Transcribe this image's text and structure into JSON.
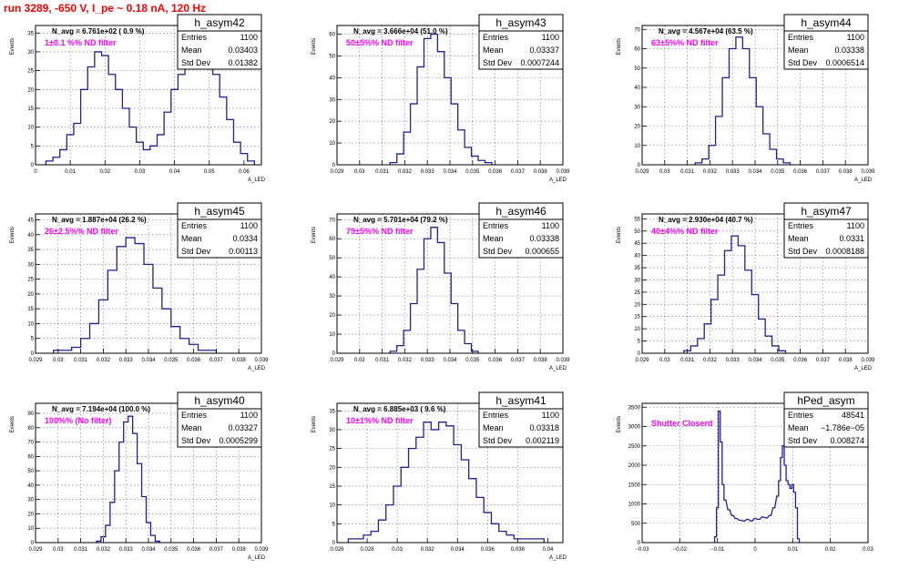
{
  "page_title": "run 3289,  -650 V, I_pe ~ 0.18 nA, 120 Hz",
  "colors": {
    "title": "#ff0000",
    "histogram": "#20209a",
    "annotation": "#ff00ff"
  },
  "chart_data": [
    {
      "type": "histogram",
      "id": "h_asym42",
      "title": "h_asym42",
      "ylabel": "Events",
      "xlabel": "A_LED",
      "xlim": [
        0,
        0.065
      ],
      "ylim": [
        0,
        37
      ],
      "xticks": [
        0,
        0.01,
        0.02,
        0.03,
        0.04,
        0.05,
        0.06
      ],
      "xtick_labels": [
        "0",
        "0.01",
        "0.02",
        "0.03",
        "0.04",
        "0.05",
        "0.06"
      ],
      "yticks": [
        0,
        5,
        10,
        15,
        20,
        25,
        30,
        35
      ],
      "ytick_labels": [
        "0",
        "5",
        "10",
        "15",
        "20",
        "25",
        "30",
        "35"
      ],
      "grid": true,
      "n_avg": "N_avg = 6.761e+02 ( 0.9 %)",
      "annotation": "1±0.1 %% ND filter",
      "stats": {
        "entries": "1100",
        "mean": "0.03403",
        "std_dev": "0.01382"
      },
      "bins": {
        "x": [
          0.004,
          0.006,
          0.008,
          0.01,
          0.012,
          0.014,
          0.016,
          0.018,
          0.02,
          0.022,
          0.024,
          0.026,
          0.028,
          0.03,
          0.032,
          0.034,
          0.036,
          0.038,
          0.04,
          0.042,
          0.044,
          0.046,
          0.048,
          0.05,
          0.052,
          0.054,
          0.056,
          0.058,
          0.06,
          0.062
        ],
        "y": [
          1,
          2,
          4,
          8,
          11,
          20,
          26,
          30,
          29,
          24,
          20,
          15,
          10,
          6,
          4,
          5,
          8,
          14,
          20,
          24,
          27,
          30,
          29,
          27,
          24,
          18,
          12,
          6,
          3,
          1
        ]
      }
    },
    {
      "type": "histogram",
      "id": "h_asym43",
      "title": "h_asym43",
      "ylabel": "Events",
      "xlabel": "A_LED",
      "xlim": [
        0.029,
        0.039
      ],
      "ylim": [
        0,
        64
      ],
      "xticks": [
        0.029,
        0.03,
        0.031,
        0.032,
        0.033,
        0.034,
        0.035,
        0.036,
        0.037,
        0.038,
        0.039
      ],
      "xtick_labels": [
        "0.029",
        "0.03",
        "0.031",
        "0.032",
        "0.033",
        "0.034",
        "0.035",
        "0.036",
        "0.037",
        "0.038",
        "0.039"
      ],
      "yticks": [
        0,
        10,
        20,
        30,
        40,
        50,
        60
      ],
      "ytick_labels": [
        "0",
        "10",
        "20",
        "30",
        "40",
        "50",
        "60"
      ],
      "grid": true,
      "n_avg": "N_avg = 3.666e+04 (51.0 %)",
      "annotation": "50±5%% ND filter",
      "stats": {
        "entries": "1100",
        "mean": "0.03337",
        "std_dev": "0.0007244"
      },
      "bins": {
        "x": [
          0.0315,
          0.0318,
          0.0321,
          0.0324,
          0.0327,
          0.033,
          0.0333,
          0.0336,
          0.0339,
          0.0342,
          0.0345,
          0.0348,
          0.0351,
          0.0354,
          0.0357
        ],
        "y": [
          1,
          5,
          15,
          28,
          45,
          58,
          60,
          52,
          40,
          28,
          16,
          8,
          4,
          2,
          1
        ]
      }
    },
    {
      "type": "histogram",
      "id": "h_asym44",
      "title": "h_asym44",
      "ylabel": "Events",
      "xlabel": "A_LED",
      "xlim": [
        0.029,
        0.039
      ],
      "ylim": [
        0,
        72
      ],
      "xticks": [
        0.029,
        0.03,
        0.031,
        0.032,
        0.033,
        0.034,
        0.035,
        0.036,
        0.037,
        0.038,
        0.039
      ],
      "xtick_labels": [
        "0.029",
        "0.03",
        "0.031",
        "0.032",
        "0.033",
        "0.034",
        "0.035",
        "0.036",
        "0.037",
        "0.038",
        "0.039"
      ],
      "yticks": [
        0,
        10,
        20,
        30,
        40,
        50,
        60,
        70
      ],
      "ytick_labels": [
        "0",
        "10",
        "20",
        "30",
        "40",
        "50",
        "60",
        "70"
      ],
      "grid": true,
      "n_avg": "N_avg = 4.567e+04 (63.5 %)",
      "annotation": "63±5%% ND filter",
      "stats": {
        "entries": "1100",
        "mean": "0.03338",
        "std_dev": "0.0006514"
      },
      "bins": {
        "x": [
          0.0315,
          0.0318,
          0.0321,
          0.0324,
          0.0327,
          0.033,
          0.0333,
          0.0336,
          0.0339,
          0.0342,
          0.0345,
          0.0348,
          0.0351,
          0.0354
        ],
        "y": [
          1,
          3,
          10,
          25,
          45,
          60,
          66,
          60,
          45,
          30,
          16,
          8,
          3,
          1
        ]
      }
    },
    {
      "type": "histogram",
      "id": "h_asym45",
      "title": "h_asym45",
      "ylabel": "Events",
      "xlabel": "A_LED",
      "xlim": [
        0.029,
        0.039
      ],
      "ylim": [
        0,
        47
      ],
      "xticks": [
        0.029,
        0.03,
        0.031,
        0.032,
        0.033,
        0.034,
        0.035,
        0.036,
        0.037,
        0.038,
        0.039
      ],
      "xtick_labels": [
        "0.029",
        "0.03",
        "0.031",
        "0.032",
        "0.033",
        "0.034",
        "0.035",
        "0.036",
        "0.037",
        "0.038",
        "0.039"
      ],
      "yticks": [
        0,
        5,
        10,
        15,
        20,
        25,
        30,
        35,
        40,
        45
      ],
      "ytick_labels": [
        "0",
        "5",
        "10",
        "15",
        "20",
        "25",
        "30",
        "35",
        "40",
        "45"
      ],
      "grid": true,
      "n_avg": "N_avg = 1.887e+04 (26.2 %)",
      "annotation": "26±2.5%% ND filter",
      "stats": {
        "entries": "1100",
        "mean": "0.0334",
        "std_dev": "0.00113"
      },
      "bins": {
        "x": [
          0.03,
          0.0304,
          0.0308,
          0.0312,
          0.0316,
          0.032,
          0.0324,
          0.0328,
          0.0332,
          0.0336,
          0.034,
          0.0344,
          0.0348,
          0.0352,
          0.0356,
          0.036,
          0.0364,
          0.0368
        ],
        "y": [
          1,
          1,
          2,
          5,
          10,
          18,
          28,
          36,
          39,
          37,
          30,
          22,
          15,
          9,
          5,
          3,
          1,
          1
        ]
      }
    },
    {
      "type": "histogram",
      "id": "h_asym46",
      "title": "h_asym46",
      "ylabel": "Events",
      "xlabel": "A_LED",
      "xlim": [
        0.029,
        0.039
      ],
      "ylim": [
        0,
        73
      ],
      "xticks": [
        0.029,
        0.03,
        0.031,
        0.032,
        0.033,
        0.034,
        0.035,
        0.036,
        0.037,
        0.038,
        0.039
      ],
      "xtick_labels": [
        "0.029",
        "0.03",
        "0.031",
        "0.032",
        "0.033",
        "0.034",
        "0.035",
        "0.036",
        "0.037",
        "0.038",
        "0.039"
      ],
      "yticks": [
        0,
        10,
        20,
        30,
        40,
        50,
        60,
        70
      ],
      "ytick_labels": [
        "0",
        "10",
        "20",
        "30",
        "40",
        "50",
        "60",
        "70"
      ],
      "grid": true,
      "n_avg": "N_avg = 5.701e+04 (79.2 %)",
      "annotation": "79±5%% ND filter",
      "stats": {
        "entries": "1100",
        "mean": "0.03338",
        "std_dev": "0.000655"
      },
      "bins": {
        "x": [
          0.0315,
          0.0318,
          0.0321,
          0.0324,
          0.0327,
          0.033,
          0.0333,
          0.0336,
          0.0339,
          0.0342,
          0.0345,
          0.0348,
          0.0351
        ],
        "y": [
          1,
          4,
          12,
          26,
          44,
          60,
          66,
          58,
          42,
          26,
          12,
          5,
          1
        ]
      }
    },
    {
      "type": "histogram",
      "id": "h_asym47",
      "title": "h_asym47",
      "ylabel": "Events",
      "xlabel": "A_LED",
      "xlim": [
        0.029,
        0.039
      ],
      "ylim": [
        0,
        57
      ],
      "xticks": [
        0.029,
        0.03,
        0.031,
        0.032,
        0.033,
        0.034,
        0.035,
        0.036,
        0.037,
        0.038,
        0.039
      ],
      "xtick_labels": [
        "0.029",
        "0.03",
        "0.031",
        "0.032",
        "0.033",
        "0.034",
        "0.035",
        "0.036",
        "0.037",
        "0.038",
        "0.039"
      ],
      "yticks": [
        0,
        5,
        10,
        15,
        20,
        25,
        30,
        35,
        40,
        45,
        50,
        55
      ],
      "ytick_labels": [
        "0",
        "5",
        "10",
        "15",
        "20",
        "25",
        "30",
        "35",
        "40",
        "45",
        "50",
        "55"
      ],
      "grid": true,
      "n_avg": "N_avg = 2.930e+04 (40.7 %)",
      "annotation": "40±4%% ND filter",
      "stats": {
        "entries": "1100",
        "mean": "0.0331",
        "std_dev": "0.0008188"
      },
      "bins": {
        "x": [
          0.031,
          0.0313,
          0.0316,
          0.0319,
          0.0322,
          0.0325,
          0.0328,
          0.0331,
          0.0334,
          0.0337,
          0.034,
          0.0343,
          0.0346,
          0.0349,
          0.0352
        ],
        "y": [
          1,
          3,
          6,
          12,
          22,
          32,
          42,
          48,
          44,
          34,
          24,
          14,
          7,
          3,
          1
        ]
      }
    },
    {
      "type": "histogram",
      "id": "h_asym40",
      "title": "h_asym40",
      "ylabel": "Events",
      "xlabel": "A_LED",
      "xlim": [
        0.029,
        0.039
      ],
      "ylim": [
        0,
        97
      ],
      "xticks": [
        0.029,
        0.03,
        0.031,
        0.032,
        0.033,
        0.034,
        0.035,
        0.036,
        0.037,
        0.038,
        0.039
      ],
      "xtick_labels": [
        "0.029",
        "0.03",
        "0.031",
        "0.032",
        "0.033",
        "0.034",
        "0.035",
        "0.036",
        "0.037",
        "0.038",
        "0.039"
      ],
      "yticks": [
        0,
        10,
        20,
        30,
        40,
        50,
        60,
        70,
        80,
        90
      ],
      "ytick_labels": [
        "0",
        "10",
        "20",
        "30",
        "40",
        "50",
        "60",
        "70",
        "80",
        "90"
      ],
      "grid": true,
      "n_avg": "N_avg = 7.194e+04 (100.0 %)",
      "annotation": "100%% (No filter)",
      "stats": {
        "entries": "1100",
        "mean": "0.03327",
        "std_dev": "0.0005299"
      },
      "bins": {
        "x": [
          0.0318,
          0.032,
          0.0322,
          0.0324,
          0.0326,
          0.0328,
          0.033,
          0.0332,
          0.0334,
          0.0336,
          0.0338,
          0.034,
          0.0342,
          0.0344
        ],
        "y": [
          1,
          4,
          12,
          28,
          50,
          70,
          84,
          88,
          76,
          55,
          32,
          14,
          5,
          1
        ]
      }
    },
    {
      "type": "histogram",
      "id": "h_asym41",
      "title": "h_asym41",
      "ylabel": "Events",
      "xlabel": "A_LED",
      "xlim": [
        0.026,
        0.041
      ],
      "ylim": [
        0,
        37
      ],
      "xticks": [
        0.026,
        0.028,
        0.03,
        0.032,
        0.034,
        0.036,
        0.038,
        0.04
      ],
      "xtick_labels": [
        "0.026",
        "0.028",
        "0.03",
        "0.032",
        "0.034",
        "0.036",
        "0.038",
        "0.04"
      ],
      "yticks": [
        0,
        5,
        10,
        15,
        20,
        25,
        30,
        35
      ],
      "ytick_labels": [
        "0",
        "5",
        "10",
        "15",
        "20",
        "25",
        "30",
        "35"
      ],
      "grid": true,
      "n_avg": "N_avg = 6.885e+03 ( 9.6 %)",
      "annotation": "10±1%% ND filter",
      "stats": {
        "entries": "1100",
        "mean": "0.03318",
        "std_dev": "0.002119"
      },
      "bins": {
        "x": [
          0.027,
          0.0275,
          0.028,
          0.0285,
          0.029,
          0.0295,
          0.03,
          0.0305,
          0.031,
          0.0315,
          0.032,
          0.0325,
          0.033,
          0.0335,
          0.034,
          0.0345,
          0.035,
          0.0355,
          0.036,
          0.0365,
          0.037,
          0.0375,
          0.038,
          0.0385,
          0.039,
          0.0395
        ],
        "y": [
          1,
          1,
          2,
          3,
          6,
          10,
          15,
          20,
          25,
          28,
          32,
          30,
          32,
          31,
          26,
          22,
          17,
          12,
          8,
          5,
          3,
          2,
          1,
          1,
          1,
          1
        ]
      }
    },
    {
      "type": "histogram",
      "id": "hPed_asym",
      "title": "hPed_asym",
      "ylabel": "Events",
      "xlabel": "",
      "xlim": [
        -0.03,
        0.03
      ],
      "ylim": [
        0,
        3600
      ],
      "xticks": [
        -0.03,
        -0.02,
        -0.01,
        0,
        0.01,
        0.02,
        0.03
      ],
      "xtick_labels": [
        "−0.03",
        "−0.02",
        "−0.01",
        "0",
        "0.01",
        "0.02",
        "0.03"
      ],
      "yticks": [
        0,
        500,
        1000,
        1500,
        2000,
        2500,
        3000,
        3500
      ],
      "ytick_labels": [
        "0",
        "500",
        "1000",
        "1500",
        "2000",
        "2500",
        "3000",
        "3500"
      ],
      "grid": true,
      "n_avg": "",
      "annotation": "Shutter Closerd",
      "stats": {
        "entries": "48541",
        "mean": "−1.786e−05",
        "std_dev": "0.008274"
      },
      "bins": {
        "x": [
          -0.0105,
          -0.01,
          -0.0095,
          -0.009,
          -0.0085,
          -0.008,
          -0.007,
          -0.006,
          -0.005,
          -0.004,
          -0.003,
          -0.002,
          -0.001,
          0.0,
          0.001,
          0.002,
          0.003,
          0.004,
          0.005,
          0.006,
          0.0065,
          0.007,
          0.0075,
          0.008,
          0.0085,
          0.009,
          0.0095,
          0.01,
          0.0105,
          0.011,
          0.0115
        ],
        "y": [
          150,
          900,
          3400,
          2600,
          1500,
          1100,
          850,
          700,
          620,
          580,
          560,
          600,
          560,
          620,
          600,
          660,
          640,
          700,
          900,
          1200,
          1600,
          2200,
          2500,
          2000,
          1600,
          1500,
          1400,
          1500,
          1300,
          900,
          100
        ]
      }
    }
  ]
}
